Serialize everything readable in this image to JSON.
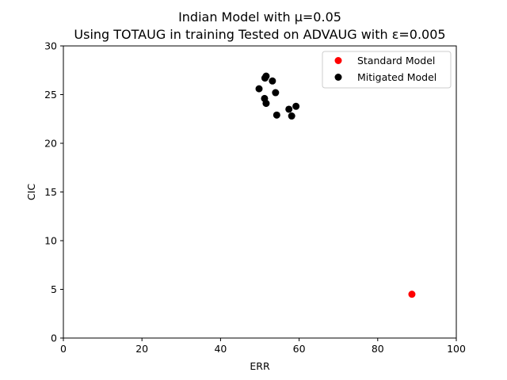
{
  "chart_data": {
    "type": "scatter",
    "title_line1": "Indian Model with μ=0.05",
    "title_line2": "Using TOTAUG in training Tested on ADVAUG with ε=0.005",
    "xlabel": "ERR",
    "ylabel": "CIC",
    "xlim": [
      0,
      100
    ],
    "ylim": [
      0,
      30
    ],
    "x_ticks": [
      0,
      20,
      40,
      60,
      80,
      100
    ],
    "y_ticks": [
      0,
      5,
      10,
      15,
      20,
      25,
      30
    ],
    "x_tick_labels": [
      "0",
      "20",
      "40",
      "60",
      "80",
      "100"
    ],
    "y_tick_labels": [
      "0",
      "5",
      "10",
      "15",
      "20",
      "25",
      "30"
    ],
    "grid": false,
    "legend_position": "top-right",
    "series": [
      {
        "name": "Standard Model",
        "color": "#ff0000",
        "points": [
          {
            "x": 88.7,
            "y": 4.5
          }
        ]
      },
      {
        "name": "Mitigated Model",
        "color": "#000000",
        "points": [
          {
            "x": 51.6,
            "y": 26.9
          },
          {
            "x": 51.3,
            "y": 26.7
          },
          {
            "x": 53.2,
            "y": 26.4
          },
          {
            "x": 49.8,
            "y": 25.6
          },
          {
            "x": 54.0,
            "y": 25.2
          },
          {
            "x": 51.2,
            "y": 24.6
          },
          {
            "x": 51.6,
            "y": 24.1
          },
          {
            "x": 59.2,
            "y": 23.8
          },
          {
            "x": 57.4,
            "y": 23.5
          },
          {
            "x": 54.3,
            "y": 22.9
          },
          {
            "x": 58.1,
            "y": 22.8
          }
        ]
      }
    ]
  }
}
